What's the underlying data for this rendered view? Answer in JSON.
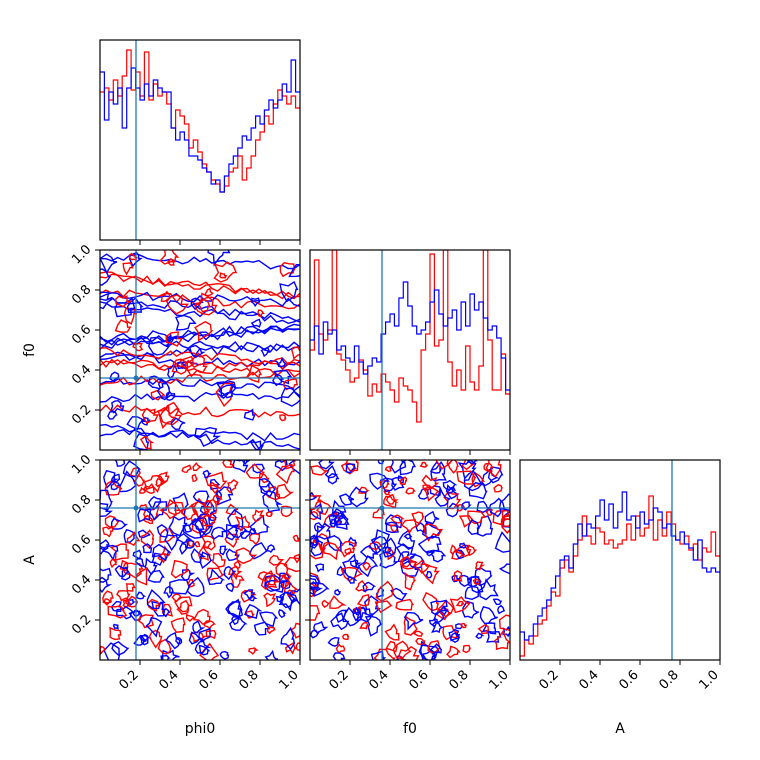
{
  "chart_data": {
    "type": "corner",
    "parameters": [
      "phi0",
      "f0",
      "A"
    ],
    "axis_labels": {
      "x": [
        "phi0",
        "f0",
        "A"
      ],
      "y": [
        "",
        "f0",
        "A"
      ]
    },
    "range": [
      0,
      1
    ],
    "ticks": [
      0.2,
      0.4,
      0.6,
      0.8,
      1.0
    ],
    "tick_labels": [
      "0.2",
      "0.4",
      "0.6",
      "0.8",
      "1.0"
    ],
    "truths": {
      "phi0": 0.18,
      "f0": 0.36,
      "A": 0.76
    },
    "colors": {
      "run_a": "#ff0000",
      "run_b": "#0000ff",
      "truth": "#1f77b4",
      "frame": "#000000"
    },
    "histograms": {
      "phi0": {
        "red": [
          0.74,
          0.76,
          0.7,
          0.8,
          0.72,
          0.82,
          0.95,
          0.75,
          0.84,
          0.72,
          0.94,
          0.7,
          0.78,
          0.72,
          0.74,
          0.68,
          0.56,
          0.65,
          0.62,
          0.58,
          0.46,
          0.5,
          0.44,
          0.38,
          0.34,
          0.3,
          0.28,
          0.24,
          0.27,
          0.34,
          0.36,
          0.42,
          0.3,
          0.36,
          0.42,
          0.5,
          0.54,
          0.62,
          0.58,
          0.68,
          0.75,
          0.72,
          0.68,
          0.72,
          0.66
        ],
        "blue": [
          0.84,
          0.6,
          0.74,
          0.68,
          0.76,
          0.56,
          0.76,
          0.86,
          0.76,
          0.7,
          0.78,
          0.72,
          0.8,
          0.76,
          0.74,
          0.74,
          0.56,
          0.5,
          0.54,
          0.5,
          0.42,
          0.42,
          0.4,
          0.36,
          0.34,
          0.28,
          0.3,
          0.24,
          0.32,
          0.38,
          0.42,
          0.46,
          0.52,
          0.5,
          0.56,
          0.62,
          0.58,
          0.65,
          0.7,
          0.66,
          0.7,
          0.78,
          0.74,
          0.9,
          0.74
        ]
      },
      "f0": {
        "red": [
          0.5,
          0.95,
          0.58,
          0.55,
          0.6,
          1.0,
          0.48,
          0.45,
          0.4,
          0.34,
          0.36,
          0.45,
          0.4,
          0.27,
          0.33,
          0.29,
          0.38,
          0.34,
          0.3,
          0.24,
          0.36,
          0.32,
          0.3,
          0.24,
          0.14,
          0.5,
          0.58,
          0.98,
          0.52,
          0.55,
          1.0,
          0.44,
          0.32,
          0.4,
          0.3,
          0.52,
          0.34,
          0.3,
          0.42,
          1.0,
          0.55,
          0.3,
          0.3,
          0.48,
          0.28
        ],
        "blue": [
          0.55,
          0.62,
          0.48,
          0.64,
          0.58,
          0.6,
          0.5,
          0.52,
          0.46,
          0.44,
          0.52,
          0.44,
          0.38,
          0.42,
          0.46,
          0.44,
          0.58,
          0.64,
          0.68,
          0.62,
          0.76,
          0.84,
          0.72,
          0.62,
          0.58,
          0.6,
          0.64,
          0.74,
          0.8,
          0.68,
          0.62,
          0.66,
          0.7,
          0.6,
          0.74,
          0.62,
          0.78,
          0.7,
          0.74,
          0.66,
          0.6,
          0.62,
          0.56,
          0.46,
          0.3
        ]
      },
      "A": {
        "red": [
          0.02,
          0.1,
          0.08,
          0.12,
          0.18,
          0.2,
          0.27,
          0.34,
          0.32,
          0.46,
          0.5,
          0.44,
          0.52,
          0.6,
          0.72,
          0.62,
          0.58,
          0.66,
          0.64,
          0.58,
          0.6,
          0.56,
          0.58,
          0.6,
          0.68,
          0.6,
          0.72,
          0.62,
          0.66,
          0.82,
          0.6,
          0.7,
          0.62,
          0.74,
          0.68,
          0.6,
          0.58,
          0.62,
          0.55,
          0.58,
          0.5,
          0.56,
          0.54,
          0.64,
          0.52
        ],
        "blue": [
          0.14,
          0.1,
          0.12,
          0.18,
          0.22,
          0.26,
          0.3,
          0.36,
          0.42,
          0.5,
          0.52,
          0.46,
          0.58,
          0.68,
          0.62,
          0.68,
          0.66,
          0.72,
          0.8,
          0.7,
          0.78,
          0.66,
          0.74,
          0.84,
          0.7,
          0.72,
          0.66,
          0.74,
          0.68,
          0.7,
          0.76,
          0.74,
          0.66,
          0.68,
          0.62,
          0.6,
          0.64,
          0.58,
          0.56,
          0.5,
          0.6,
          0.46,
          0.44,
          0.46,
          0.44
        ]
      }
    },
    "contour_density": {
      "phi0_vs_f0": "horizontal banding across full range, red and blue interleaved",
      "phi0_vs_A": "dense speckled contours across full range",
      "f0_vs_A": "dense speckled contours across full range"
    }
  }
}
